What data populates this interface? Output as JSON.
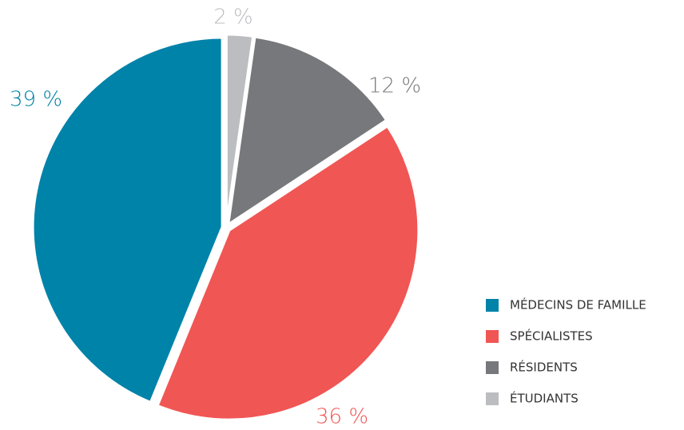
{
  "chart_data": {
    "type": "pie",
    "categories": [
      "MÉDECINS DE FAMILLE",
      "SPÉCIALISTES",
      "RÉSIDENTS",
      "ÉTUDIANTS"
    ],
    "values": [
      39,
      36,
      12,
      2
    ],
    "value_labels": [
      "39 %",
      "36 %",
      "12 %",
      "2 %"
    ],
    "colors": [
      "#0083a9",
      "#f05654",
      "#77787b",
      "#bcbdc0"
    ],
    "legend": "bottom-right"
  }
}
